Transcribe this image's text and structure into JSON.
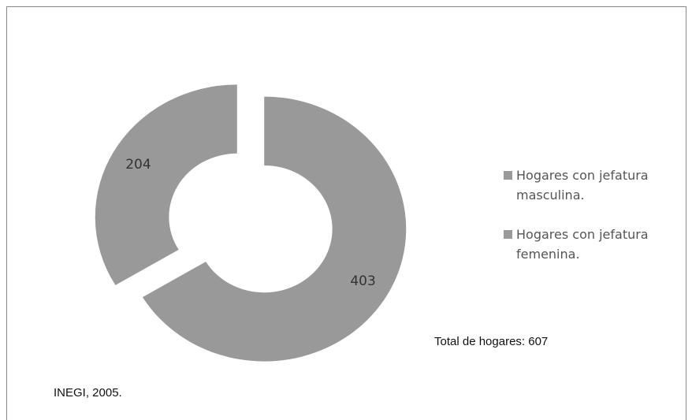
{
  "chart_data": {
    "type": "doughnut",
    "categories": [
      "Hogares con jefatura masculina.",
      "Hogares con jefatura femenina."
    ],
    "values": [
      403,
      204
    ],
    "colors": [
      "#999999",
      "#999999"
    ],
    "legend": "right",
    "annotations": [
      "Total de hogares: 607",
      "INEGI, 2005."
    ]
  }
}
